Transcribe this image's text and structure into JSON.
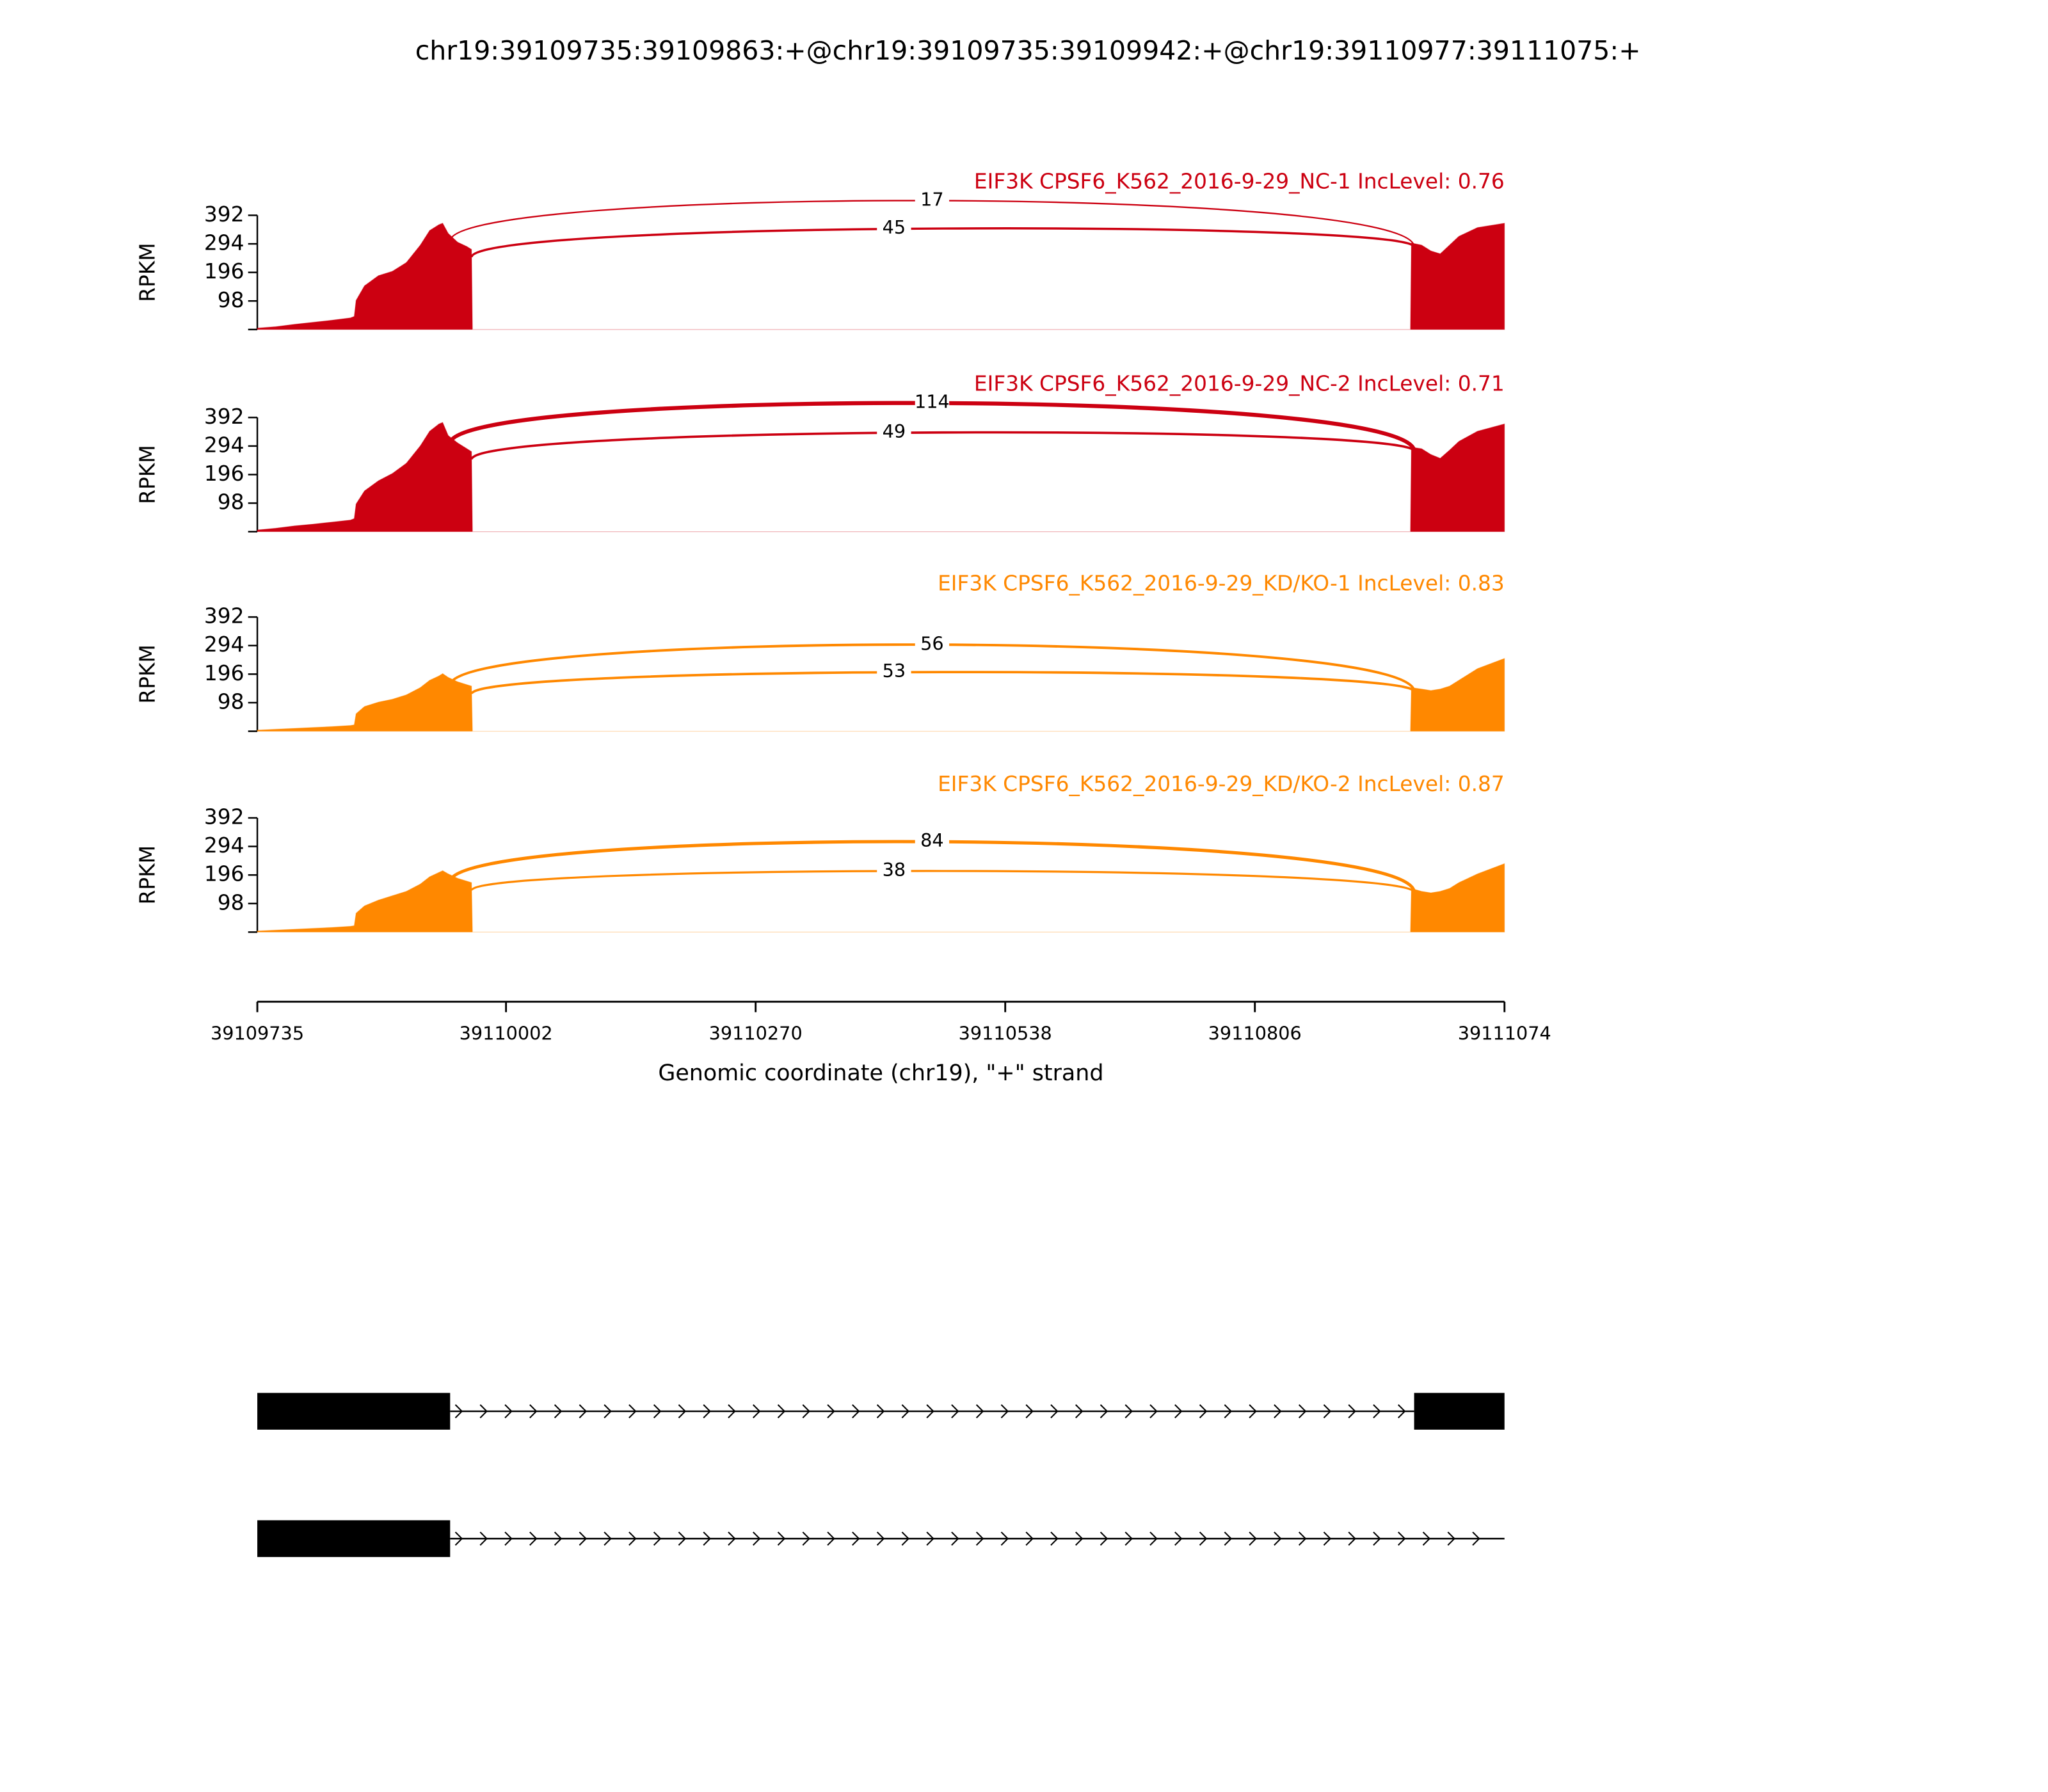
{
  "title": "chr19:39109735:39109863:+@chr19:39109735:39109942:+@chr19:39110977:39111075:+",
  "chart_data": [
    {
      "type": "area",
      "title": "EIF3K CPSF6_K562_2016-9-29_NC-1 IncLevel: 0.76",
      "color": "#cc0011",
      "ylabel": "RPKM",
      "ylim": [
        0,
        392
      ],
      "yticks": [
        98,
        196,
        294,
        392
      ],
      "x": [
        39109735,
        39109755,
        39109775,
        39109795,
        39109815,
        39109835,
        39109839,
        39109841,
        39109850,
        39109865,
        39109880,
        39109895,
        39109910,
        39109920,
        39109930,
        39109934,
        39109940,
        39109950,
        39109960,
        39109965,
        39109966,
        39110973,
        39110974,
        39110985,
        39110995,
        39111005,
        39111015,
        39111025,
        39111045,
        39111074
      ],
      "values": [
        5,
        10,
        18,
        25,
        32,
        40,
        45,
        100,
        150,
        185,
        200,
        230,
        290,
        340,
        360,
        365,
        330,
        300,
        285,
        275,
        0,
        0,
        297,
        290,
        270,
        260,
        290,
        320,
        350,
        365
      ],
      "junctions": [
        {
          "start": 39109942,
          "end": 39110977,
          "count": 17
        },
        {
          "start": 39109965,
          "end": 39110977,
          "count": 45
        }
      ]
    },
    {
      "type": "area",
      "title": "EIF3K CPSF6_K562_2016-9-29_NC-2 IncLevel: 0.71",
      "color": "#cc0011",
      "ylabel": "RPKM",
      "ylim": [
        0,
        392
      ],
      "yticks": [
        98,
        196,
        294,
        392
      ],
      "x": [
        39109735,
        39109755,
        39109775,
        39109795,
        39109815,
        39109835,
        39109839,
        39109841,
        39109850,
        39109865,
        39109880,
        39109895,
        39109910,
        39109920,
        39109930,
        39109934,
        39109940,
        39109950,
        39109960,
        39109965,
        39109966,
        39110973,
        39110974,
        39110985,
        39110995,
        39111005,
        39111015,
        39111025,
        39111045,
        39111074
      ],
      "values": [
        6,
        12,
        20,
        26,
        33,
        40,
        45,
        95,
        140,
        175,
        200,
        235,
        295,
        345,
        370,
        375,
        330,
        305,
        285,
        275,
        0,
        0,
        290,
        285,
        265,
        252,
        280,
        310,
        345,
        370
      ],
      "junctions": [
        {
          "start": 39109942,
          "end": 39110977,
          "count": 114
        },
        {
          "start": 39109965,
          "end": 39110977,
          "count": 49
        }
      ]
    },
    {
      "type": "area",
      "title": "EIF3K CPSF6_K562_2016-9-29_KD/KO-1 IncLevel: 0.83",
      "color": "#ff8800",
      "ylabel": "RPKM",
      "ylim": [
        0,
        392
      ],
      "yticks": [
        98,
        196,
        294,
        392
      ],
      "x": [
        39109735,
        39109755,
        39109775,
        39109795,
        39109815,
        39109835,
        39109839,
        39109841,
        39109850,
        39109865,
        39109880,
        39109895,
        39109910,
        39109920,
        39109930,
        39109934,
        39109940,
        39109950,
        39109960,
        39109965,
        39109966,
        39110973,
        39110974,
        39110985,
        39110995,
        39111005,
        39111015,
        39111025,
        39111045,
        39111074
      ],
      "values": [
        4,
        7,
        10,
        13,
        16,
        20,
        22,
        60,
        85,
        100,
        110,
        125,
        150,
        175,
        190,
        198,
        185,
        170,
        160,
        155,
        0,
        0,
        150,
        145,
        140,
        145,
        155,
        175,
        215,
        250
      ],
      "junctions": [
        {
          "start": 39109942,
          "end": 39110977,
          "count": 56
        },
        {
          "start": 39109965,
          "end": 39110977,
          "count": 53
        }
      ]
    },
    {
      "type": "area",
      "title": "EIF3K CPSF6_K562_2016-9-29_KD/KO-2 IncLevel: 0.87",
      "color": "#ff8800",
      "ylabel": "RPKM",
      "ylim": [
        0,
        392
      ],
      "yticks": [
        98,
        196,
        294,
        392
      ],
      "x": [
        39109735,
        39109755,
        39109775,
        39109795,
        39109815,
        39109835,
        39109839,
        39109841,
        39109850,
        39109865,
        39109880,
        39109895,
        39109910,
        39109920,
        39109930,
        39109934,
        39109940,
        39109950,
        39109960,
        39109965,
        39109966,
        39110973,
        39110974,
        39110985,
        39110995,
        39111005,
        39111015,
        39111025,
        39111045,
        39111074
      ],
      "values": [
        4,
        7,
        10,
        13,
        16,
        20,
        22,
        65,
        90,
        110,
        125,
        140,
        165,
        190,
        205,
        211,
        200,
        185,
        175,
        170,
        0,
        0,
        150,
        140,
        135,
        140,
        150,
        170,
        200,
        235
      ],
      "junctions": [
        {
          "start": 39109942,
          "end": 39110977,
          "count": 84
        },
        {
          "start": 39109965,
          "end": 39110977,
          "count": 38
        }
      ]
    }
  ],
  "x_axis": {
    "xlim": [
      39109735,
      39111074
    ],
    "xticks": [
      39109735,
      39110002,
      39110270,
      39110538,
      39110806,
      39111074
    ],
    "xlabel": "Genomic coordinate (chr19), \"+\" strand"
  },
  "transcripts": [
    {
      "exons": [
        [
          39109735,
          39109942
        ],
        [
          39110977,
          39111074
        ]
      ]
    },
    {
      "exons": [
        [
          39109735,
          39109942
        ]
      ],
      "end": 39111074
    }
  ]
}
